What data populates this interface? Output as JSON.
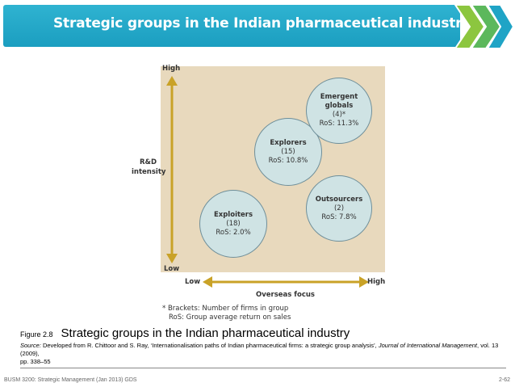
{
  "slide": {
    "title": "Strategic groups in the Indian pharmaceutical industry"
  },
  "diagram": {
    "y_high": "High",
    "y_low": "Low",
    "y_axis_label_line1": "R&D",
    "y_axis_label_line2": "intensity",
    "x_low": "Low",
    "x_high": "High",
    "x_axis_label": "Overseas focus",
    "groups": [
      {
        "name": "Exploiters",
        "count": "(18)",
        "ros": "RoS: 2.0%"
      },
      {
        "name": "Explorers",
        "count": "(15)",
        "ros": "RoS: 10.8%"
      },
      {
        "name_line1": "Emergent",
        "name_line2": "globals",
        "count": "(4)*",
        "ros": "RoS: 11.3%"
      },
      {
        "name": "Outsourcers",
        "count": "(2)",
        "ros": "RoS: 7.8%"
      }
    ],
    "note_line1": "* Brackets: Number of firms in group",
    "note_line2": "RoS: Group average return on sales"
  },
  "caption": {
    "figure_number": "Figure 2.8",
    "title": "Strategic groups in the Indian pharmaceutical industry",
    "source_label": "Source:",
    "source_text1": " Developed from R. Chittoor and S. Ray, ‘Internationalisation paths of Indian pharmaceutical firms: a strategic group analysis’, ",
    "source_journal": "Journal of International Management",
    "source_text2": ", vol. 13 (2009),",
    "source_text3": "pp. 338–55"
  },
  "footer": {
    "left": "BUSM 3200: Strategic Management (Jan 2013) GDS",
    "right": "2-62"
  },
  "colors": {
    "banner": "#1fa4c6",
    "chevron_green": "#8cc63f",
    "chevron_blue": "#1fa4c6",
    "panel": "#e8d9bd",
    "circle_fill": "#cfe3e4",
    "axis_arrow": "#c9a227"
  }
}
